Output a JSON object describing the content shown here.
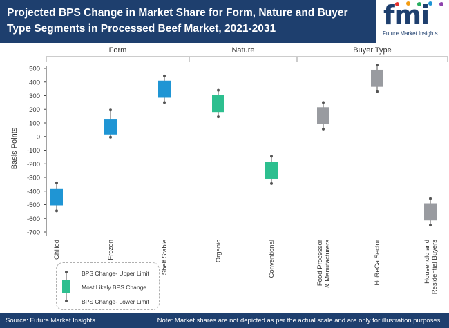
{
  "header": {
    "title": "Projected BPS Change in Market Share for Form, Nature and Buyer Type Segments in Processed Beef Market, 2021-2031",
    "logo_text": "fmi",
    "logo_sub": "Future Market Insights"
  },
  "footer": {
    "source": "Source: Future Market Insights",
    "note": "Note: Market shares are not depicted as per the actual scale and are only for illustration purposes."
  },
  "legend": {
    "upper": "BPS Change- Upper Limit",
    "mid": "Most Likely BPS Change",
    "lower": "BPS Change- Lower Limit"
  },
  "colors": {
    "header_bg": "#1e3f6e",
    "form": "#1f95d4",
    "nature": "#2dbf8f",
    "buyer": "#999ba0"
  },
  "chart_data": {
    "type": "box",
    "ylabel": "Basis Points",
    "ylim": [
      -700,
      500
    ],
    "yticks": [
      500,
      400,
      300,
      200,
      100,
      0,
      -100,
      -200,
      -300,
      -400,
      -500,
      -600,
      -700
    ],
    "grid": false,
    "groups": [
      {
        "label": "Form",
        "color": "#1f95d4",
        "items": [
          {
            "category": "Chilled",
            "upper": -340,
            "box_high": -380,
            "box_low": -505,
            "lower": -545
          },
          {
            "category": "Frozen",
            "upper": 195,
            "box_high": 125,
            "box_low": 15,
            "lower": -5
          },
          {
            "category": "Shelf Stable",
            "upper": 445,
            "box_high": 410,
            "box_low": 285,
            "lower": 250
          }
        ]
      },
      {
        "label": "Nature",
        "color": "#2dbf8f",
        "items": [
          {
            "category": "Organic",
            "upper": 340,
            "box_high": 305,
            "box_low": 180,
            "lower": 145
          },
          {
            "category": "Conventional",
            "upper": -145,
            "box_high": -185,
            "box_low": -310,
            "lower": -345
          }
        ]
      },
      {
        "label": "Buyer Type",
        "color": "#999ba0",
        "items": [
          {
            "category": "Food Processor & Manufacturers",
            "upper": 250,
            "box_high": 215,
            "box_low": 90,
            "lower": 55
          },
          {
            "category": "HoReCa Sector",
            "upper": 525,
            "box_high": 490,
            "box_low": 365,
            "lower": 330
          },
          {
            "category": "Household and Residential Buyers",
            "upper": -455,
            "box_high": -490,
            "box_low": -615,
            "lower": -650
          }
        ]
      }
    ]
  }
}
